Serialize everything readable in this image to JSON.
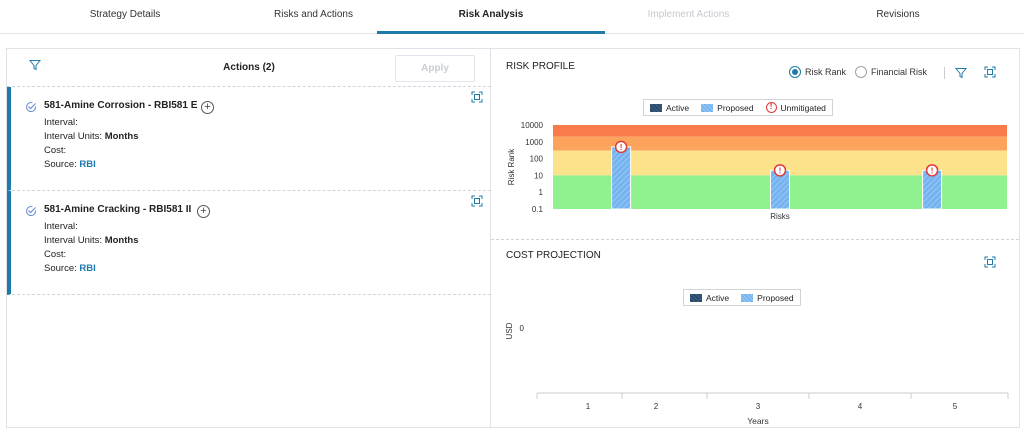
{
  "tabs": [
    {
      "label": "Strategy Details",
      "state": "normal"
    },
    {
      "label": "Risks and Actions",
      "state": "normal"
    },
    {
      "label": "Risk Analysis",
      "state": "active"
    },
    {
      "label": "Implement Actions",
      "state": "disabled"
    },
    {
      "label": "Revisions",
      "state": "normal"
    }
  ],
  "left": {
    "title": "Actions (2)",
    "apply_label": "Apply",
    "actions": [
      {
        "title": "581-Amine Corrosion - RBI581 E",
        "interval_label": "Interval:",
        "interval_value": "",
        "units_label": "Interval Units:",
        "units_value": "Months",
        "cost_label": "Cost:",
        "cost_value": "",
        "source_label": "Source:",
        "source_value": "RBI"
      },
      {
        "title": "581-Amine Cracking - RBI581 II",
        "interval_label": "Interval:",
        "interval_value": "",
        "units_label": "Interval Units:",
        "units_value": "Months",
        "cost_label": "Cost:",
        "cost_value": "",
        "source_label": "Source:",
        "source_value": "RBI"
      }
    ]
  },
  "profile": {
    "title": "RISK PROFILE",
    "radio_risk_rank": "Risk Rank",
    "radio_financial": "Financial Risk",
    "selected": "Risk Rank",
    "legend": {
      "active": "Active",
      "proposed": "Proposed",
      "unmitigated": "Unmitigated"
    }
  },
  "cost": {
    "title": "COST PROJECTION",
    "legend": {
      "active": "Active",
      "proposed": "Proposed"
    }
  },
  "colors": {
    "accent": "#1e7aab",
    "band_red": "#f97a4a",
    "band_orange": "#fca45c",
    "band_yellow": "#fde28c",
    "band_green": "#8ff28e",
    "proposed": "#74b3ef",
    "active": "#2c4a6a",
    "unmitigated": "#e03a3a"
  },
  "chart_data": [
    {
      "type": "bar",
      "title": "RISK PROFILE",
      "xlabel": "Risks",
      "ylabel": "Risk Rank",
      "yscale": "log",
      "ylim": [
        0.1,
        10000
      ],
      "yticks": [
        "10000",
        "1000",
        "100",
        "10",
        "1",
        "0.1"
      ],
      "risk_bands": [
        {
          "from": 2000,
          "to": 10000,
          "color": "red"
        },
        {
          "from": 300,
          "to": 2000,
          "color": "orange"
        },
        {
          "from": 10,
          "to": 300,
          "color": "yellow"
        },
        {
          "from": 0.1,
          "to": 10,
          "color": "green"
        }
      ],
      "series": [
        {
          "name": "Proposed",
          "values": [
            500,
            20,
            20
          ],
          "unmitigated": [
            true,
            true,
            true
          ]
        }
      ],
      "grid": false,
      "legend": "top-center"
    },
    {
      "type": "bar",
      "title": "COST PROJECTION",
      "xlabel": "Years",
      "ylabel": "USD",
      "categories": [
        "1",
        "2",
        "3",
        "4",
        "5"
      ],
      "yticks": [
        "0"
      ],
      "series": [
        {
          "name": "Active",
          "values": [
            0,
            0,
            0,
            0,
            0
          ]
        },
        {
          "name": "Proposed",
          "values": [
            0,
            0,
            0,
            0,
            0
          ]
        }
      ],
      "legend": "top-center"
    }
  ]
}
